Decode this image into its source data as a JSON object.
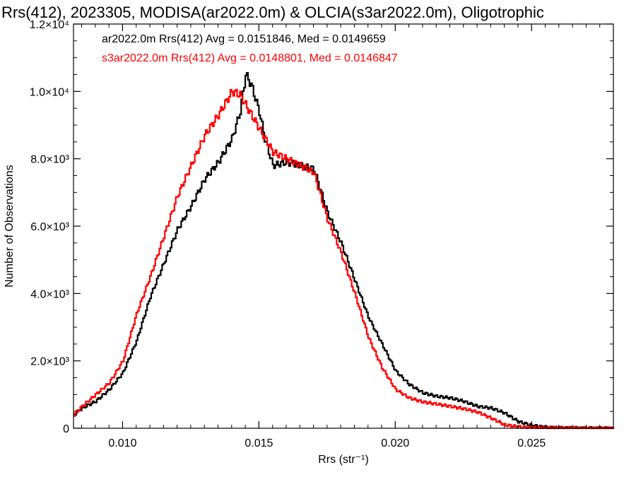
{
  "chart_data": {
    "type": "line",
    "title": "Rrs(412), 2023305, MODISA(ar2022.0m) & OLCIA(s3ar2022.0m), Oligotrophic",
    "xlabel": "Rrs (str⁻¹)",
    "ylabel": "Number of Observations",
    "xlim": [
      0.0082,
      0.028
    ],
    "ylim": [
      0,
      12000
    ],
    "x_ticks": [
      {
        "value": 0.01,
        "label": "0.010"
      },
      {
        "value": 0.015,
        "label": "0.015"
      },
      {
        "value": 0.02,
        "label": "0.020"
      },
      {
        "value": 0.025,
        "label": "0.025"
      }
    ],
    "y_ticks": [
      {
        "value": 0,
        "label": "0"
      },
      {
        "value": 2000,
        "label": "2.0×10³"
      },
      {
        "value": 4000,
        "label": "4.0×10³"
      },
      {
        "value": 6000,
        "label": "6.0×10³"
      },
      {
        "value": 8000,
        "label": "8.0×10³"
      },
      {
        "value": 10000,
        "label": "1.0×10⁴"
      },
      {
        "value": 12000,
        "label": "1.2×10⁴"
      }
    ],
    "legend": [
      {
        "text": "ar2022.0m Rrs(412) Avg = 0.0151846, Med = 0.0149659",
        "color": "#000000"
      },
      {
        "text": "s3ar2022.0m Rrs(412) Avg = 0.0148801, Med = 0.0146847",
        "color": "#ff0000"
      }
    ],
    "legend_position": "top-left",
    "step": true,
    "series": [
      {
        "color": "#000000",
        "points": [
          [
            0.0082,
            400
          ],
          [
            0.0085,
            600
          ],
          [
            0.009,
            800
          ],
          [
            0.0095,
            1150
          ],
          [
            0.01,
            1650
          ],
          [
            0.0105,
            2600
          ],
          [
            0.011,
            3900
          ],
          [
            0.0115,
            4900
          ],
          [
            0.012,
            5900
          ],
          [
            0.0125,
            6600
          ],
          [
            0.013,
            7400
          ],
          [
            0.0135,
            7900
          ],
          [
            0.014,
            8600
          ],
          [
            0.0143,
            9400
          ],
          [
            0.0145,
            10500
          ],
          [
            0.0147,
            10200
          ],
          [
            0.015,
            9400
          ],
          [
            0.0152,
            8600
          ],
          [
            0.0155,
            7800
          ],
          [
            0.016,
            7900
          ],
          [
            0.0165,
            7800
          ],
          [
            0.017,
            7700
          ],
          [
            0.0175,
            6400
          ],
          [
            0.018,
            5500
          ],
          [
            0.0185,
            4400
          ],
          [
            0.019,
            3300
          ],
          [
            0.0195,
            2500
          ],
          [
            0.02,
            1700
          ],
          [
            0.0205,
            1300
          ],
          [
            0.021,
            1050
          ],
          [
            0.0215,
            950
          ],
          [
            0.022,
            900
          ],
          [
            0.0225,
            800
          ],
          [
            0.023,
            650
          ],
          [
            0.0235,
            600
          ],
          [
            0.024,
            450
          ],
          [
            0.0245,
            200
          ],
          [
            0.025,
            80
          ],
          [
            0.0255,
            30
          ],
          [
            0.026,
            10
          ],
          [
            0.027,
            0
          ],
          [
            0.028,
            0
          ]
        ]
      },
      {
        "color": "#ff0000",
        "points": [
          [
            0.0082,
            400
          ],
          [
            0.0085,
            650
          ],
          [
            0.009,
            1000
          ],
          [
            0.0095,
            1350
          ],
          [
            0.01,
            2000
          ],
          [
            0.0105,
            3400
          ],
          [
            0.011,
            4500
          ],
          [
            0.0115,
            5700
          ],
          [
            0.012,
            6900
          ],
          [
            0.0125,
            7800
          ],
          [
            0.013,
            8700
          ],
          [
            0.0135,
            9300
          ],
          [
            0.014,
            10000
          ],
          [
            0.0143,
            9900
          ],
          [
            0.0145,
            9600
          ],
          [
            0.015,
            8900
          ],
          [
            0.0155,
            8200
          ],
          [
            0.016,
            8000
          ],
          [
            0.0165,
            7800
          ],
          [
            0.017,
            7600
          ],
          [
            0.0175,
            6200
          ],
          [
            0.018,
            5200
          ],
          [
            0.0185,
            4000
          ],
          [
            0.019,
            2700
          ],
          [
            0.0195,
            1800
          ],
          [
            0.02,
            1150
          ],
          [
            0.0205,
            900
          ],
          [
            0.021,
            780
          ],
          [
            0.0215,
            720
          ],
          [
            0.022,
            650
          ],
          [
            0.0225,
            580
          ],
          [
            0.023,
            480
          ],
          [
            0.0235,
            300
          ],
          [
            0.024,
            100
          ],
          [
            0.0245,
            40
          ],
          [
            0.025,
            20
          ],
          [
            0.026,
            10
          ],
          [
            0.027,
            0
          ],
          [
            0.028,
            0
          ]
        ]
      }
    ]
  }
}
